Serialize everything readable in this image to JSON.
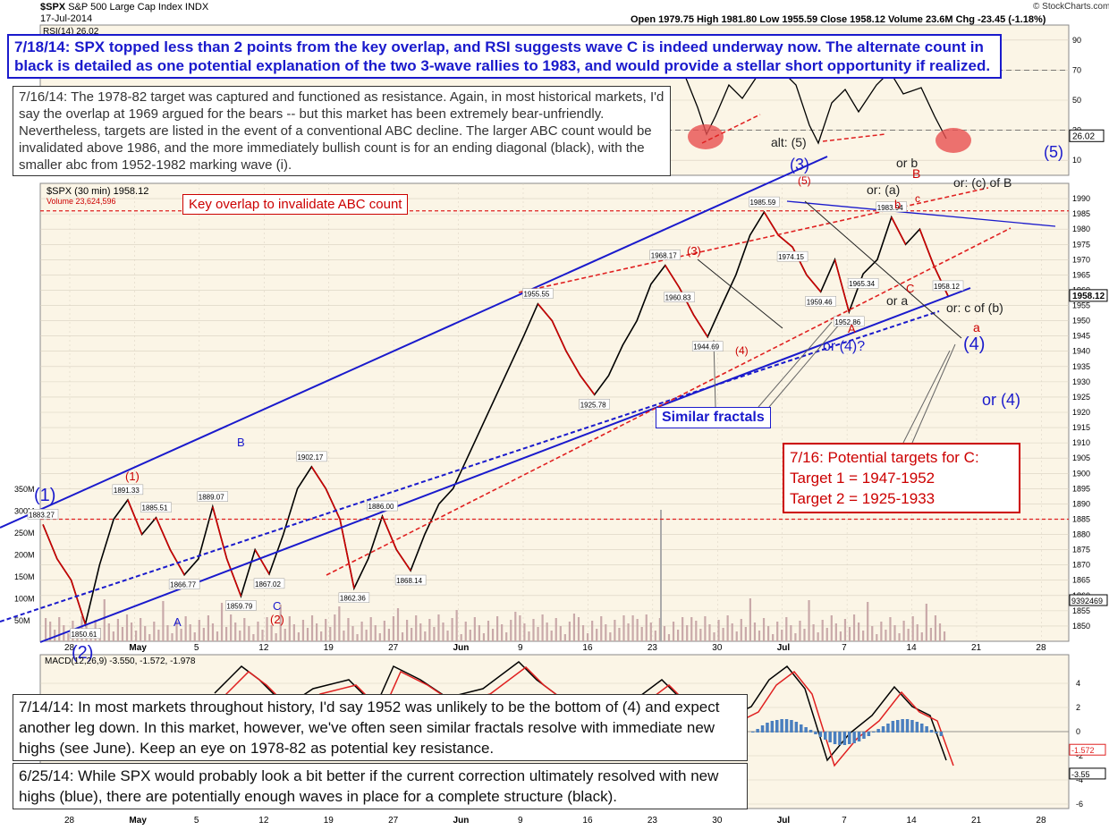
{
  "header": {
    "symbol": "$SPX",
    "index_name": "S&P 500 Large Cap Index",
    "exchange": "INDX",
    "date": "17-Jul-2014",
    "ohlc": "Open 1979.75  High 1981.80  Low 1955.59  Close 1958.12  Volume 23.6M  Chg -23.45 (-1.18%)",
    "brand": "© StockCharts.com"
  },
  "panel_labels": {
    "rsi": "RSI(14) 26.02",
    "price": "$SPX (30 min) 1958.12",
    "volume": "Volume 23,624,596",
    "macd": "MACD(12,26,9) -3.550, -1.572, -1.978"
  },
  "annotations": {
    "note_0718": "7/18/14:  SPX topped less than 2 points from the key overlap, and RSI suggests wave C is indeed underway now.  The alternate count in black is detailed as one potential explanation of the two 3-wave rallies to 1983, and would provide a stellar short opportunity if realized.",
    "note_0716": "7/16/14:  The 1978-82 target was captured and functioned as resistance.  Again, in most historical markets, I'd say the overlap at 1969 argued for the bears -- but this market has been extremely bear-unfriendly.  Nevertheless, targets are listed in the event of a conventional ABC decline. The larger ABC count would be invalidated above 1986, and the more immediately bullish count is for an ending diagonal (black), with the smaller abc from 1952-1982 marking wave (i).",
    "key_overlap": "Key overlap to invalidate ABC count",
    "similar_fractals": "Similar fractals",
    "targets_title": "7/16: Potential targets for C:",
    "target_1": "Target 1 = 1947-1952",
    "target_2": "Target 2 = 1925-1933",
    "note_0714": "7/14/14:  In most markets throughout history, I'd say 1952 was unlikely to be the bottom of (4) and expect another leg down.  In this market, however, we've often seen similar fractals resolve with immediate new highs (see June).  Keep an eye on 1978-82 as potential key resistance.",
    "note_0625": "6/25/14:  While SPX would probably look a bit better if the current correction ultimately resolved with new highs (blue), there are potentially enough waves in place for a complete structure (black)."
  },
  "wave_labels": [
    {
      "text": "(1)",
      "color": "#1a1acc"
    },
    {
      "text": "(2)",
      "color": "#1a1acc"
    },
    {
      "text": "(3)",
      "color": "#1a1acc"
    },
    {
      "text": "(4)",
      "color": "#1a1acc"
    },
    {
      "text": "(5)",
      "color": "#1a1acc"
    },
    {
      "text": "or (4)",
      "color": "#1a1acc"
    },
    {
      "text": "or (4)?",
      "color": "#1a1acc"
    },
    {
      "text": "A",
      "color": "#1a1acc"
    },
    {
      "text": "B",
      "color": "#1a1acc"
    },
    {
      "text": "C",
      "color": "#1a1acc"
    },
    {
      "text": "(1)",
      "color": "#cc0000"
    },
    {
      "text": "(2)",
      "color": "#cc0000"
    },
    {
      "text": "(3)",
      "color": "#cc0000"
    },
    {
      "text": "(4)",
      "color": "#cc0000"
    },
    {
      "text": "(5)",
      "color": "#cc0000"
    },
    {
      "text": "A",
      "color": "#cc0000"
    },
    {
      "text": "B",
      "color": "#cc0000"
    },
    {
      "text": "C",
      "color": "#cc0000"
    },
    {
      "text": "a",
      "color": "#cc0000"
    },
    {
      "text": "b",
      "color": "#cc0000"
    },
    {
      "text": "c",
      "color": "#cc0000"
    },
    {
      "text": "alt: (5)",
      "color": "#222222"
    },
    {
      "text": "or b",
      "color": "#222222"
    },
    {
      "text": "or: (a)",
      "color": "#222222"
    },
    {
      "text": "or: (c) of B",
      "color": "#222222"
    },
    {
      "text": "or a",
      "color": "#222222"
    },
    {
      "text": "or: c of (b)",
      "color": "#222222"
    }
  ],
  "colors": {
    "panel_bg": "#fbf5e6",
    "price_line": "#000000",
    "down_candle": "#cc0000",
    "channel_blue": "#1a1acc",
    "channel_red": "#e02020",
    "grid": "#d8d0c0",
    "macd_line": "#000000",
    "signal_line": "#e02020",
    "hist": "#4a7fbf"
  },
  "chart_data": [
    {
      "type": "line",
      "title": "$SPX S&P 500 Large Cap Index INDX (30 min)",
      "x_ticks": [
        "28",
        "May",
        "5",
        "12",
        "19",
        "27",
        "Jun",
        "9",
        "16",
        "23",
        "30",
        "Jul",
        "7",
        "14",
        "21",
        "28"
      ],
      "ylim": [
        1845,
        1995
      ],
      "y_ticks": [
        1850,
        1855,
        1860,
        1865,
        1870,
        1875,
        1880,
        1885,
        1890,
        1895,
        1900,
        1905,
        1910,
        1915,
        1920,
        1925,
        1930,
        1935,
        1940,
        1945,
        1950,
        1955,
        1960,
        1965,
        1970,
        1975,
        1980,
        1985,
        1990
      ],
      "series": [
        {
          "name": "$SPX",
          "values": [
            1883.27,
            1872,
            1865,
            1850.61,
            1870,
            1885,
            1891.33,
            1880,
            1885.51,
            1875,
            1866.77,
            1872,
            1889.07,
            1872,
            1859.79,
            1875,
            1867.02,
            1880,
            1895,
            1902.17,
            1895,
            1885,
            1862.36,
            1872,
            1886.0,
            1875,
            1868.14,
            1880,
            1890,
            1895,
            1905,
            1915,
            1925,
            1935,
            1945,
            1955.55,
            1950,
            1940,
            1932,
            1925.78,
            1932,
            1942,
            1950,
            1962,
            1968.17,
            1960.83,
            1952,
            1944.69,
            1955,
            1965,
            1978,
            1985.59,
            1978,
            1974.15,
            1965,
            1959.46,
            1970,
            1952.86,
            1965.34,
            1970,
            1983.94,
            1975,
            1980,
            1968,
            1958.12
          ]
        }
      ],
      "price_labels": [
        "1883.27",
        "1850.61",
        "1891.33",
        "1885.51",
        "1866.77",
        "1889.07",
        "1859.79",
        "1867.02",
        "1902.17",
        "1862.36",
        "1886.00",
        "1868.14",
        "1955.55",
        "1925.78",
        "1968.17",
        "1960.83",
        "1944.69",
        "1985.59",
        "1974.15",
        "1959.46",
        "1952.86",
        "1965.34",
        "1983.94",
        "1958.12"
      ],
      "horizontal_lines": [
        {
          "label": "Key overlap to invalidate ABC count",
          "value": 1986
        },
        {
          "value": 1885
        }
      ]
    },
    {
      "type": "line",
      "title": "RSI(14)",
      "y_ticks": [
        10,
        30,
        50,
        70,
        90
      ],
      "last_value": 26.02
    },
    {
      "type": "bar",
      "title": "Volume",
      "y_ticks": [
        "50M",
        "100M",
        "150M",
        "200M",
        "250M",
        "300M",
        "350M"
      ],
      "last_value": "9392469"
    },
    {
      "type": "line",
      "title": "MACD(12,26,9)",
      "y_ticks": [
        -6,
        -4,
        -2,
        0,
        2,
        4
      ],
      "values": {
        "macd": -3.55,
        "signal": -1.572,
        "hist": -1.978
      }
    }
  ]
}
